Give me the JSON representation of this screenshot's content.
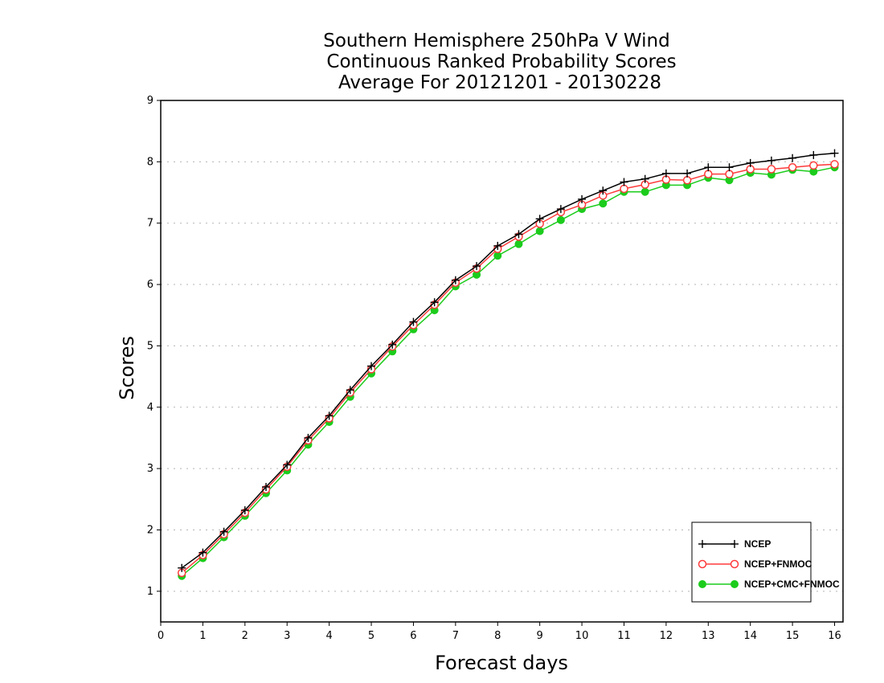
{
  "chart_data": {
    "type": "line",
    "title": [
      "Southern Hemisphere 250hPa V Wind",
      "Continuous Ranked Probability Scores",
      "Average For 20121201 - 20130228"
    ],
    "xlabel": "Forecast days",
    "ylabel": "Scores",
    "xlim": [
      0,
      16.2
    ],
    "ylim": [
      0.5,
      9
    ],
    "xticks": [
      0,
      1,
      2,
      3,
      4,
      5,
      6,
      7,
      8,
      9,
      10,
      11,
      12,
      13,
      14,
      15,
      16
    ],
    "yticks": [
      1,
      2,
      3,
      4,
      5,
      6,
      7,
      8,
      9
    ],
    "grid": "horizontal dotted",
    "legend_position": "bottom-right",
    "x": [
      0.5,
      1,
      1.5,
      2,
      2.5,
      3,
      3.5,
      4,
      4.5,
      5,
      5.5,
      6,
      6.5,
      7,
      7.5,
      8,
      8.5,
      9,
      9.5,
      10,
      10.5,
      11,
      11.5,
      12,
      12.5,
      13,
      13.5,
      14,
      14.5,
      15,
      15.5,
      16
    ],
    "series": [
      {
        "name": "NCEP",
        "color": "#000000",
        "marker": "plus",
        "values": [
          1.38,
          1.63,
          1.97,
          2.32,
          2.7,
          3.06,
          3.5,
          3.86,
          4.28,
          4.67,
          5.02,
          5.39,
          5.71,
          6.07,
          6.3,
          6.63,
          6.82,
          7.07,
          7.23,
          7.39,
          7.53,
          7.67,
          7.72,
          7.81,
          7.81,
          7.91,
          7.91,
          7.98,
          8.02,
          8.06,
          8.11,
          8.14
        ]
      },
      {
        "name": "NCEP+FNMOC",
        "color": "#ff3b3b",
        "marker": "open-circle",
        "values": [
          1.3,
          1.59,
          1.93,
          2.28,
          2.66,
          3.03,
          3.46,
          3.82,
          4.24,
          4.62,
          4.99,
          5.34,
          5.67,
          6.03,
          6.26,
          6.58,
          6.78,
          6.99,
          7.18,
          7.3,
          7.45,
          7.56,
          7.63,
          7.71,
          7.7,
          7.8,
          7.8,
          7.88,
          7.88,
          7.91,
          7.94,
          7.96
        ]
      },
      {
        "name": "NCEP+CMC+FNMOC",
        "color": "#1ccc1c",
        "marker": "filled-circle",
        "values": [
          1.25,
          1.54,
          1.88,
          2.23,
          2.6,
          2.97,
          3.39,
          3.76,
          4.17,
          4.55,
          4.91,
          5.27,
          5.58,
          5.97,
          6.16,
          6.47,
          6.66,
          6.87,
          7.05,
          7.23,
          7.32,
          7.51,
          7.51,
          7.62,
          7.62,
          7.74,
          7.7,
          7.82,
          7.79,
          7.87,
          7.84,
          7.91
        ]
      }
    ]
  }
}
